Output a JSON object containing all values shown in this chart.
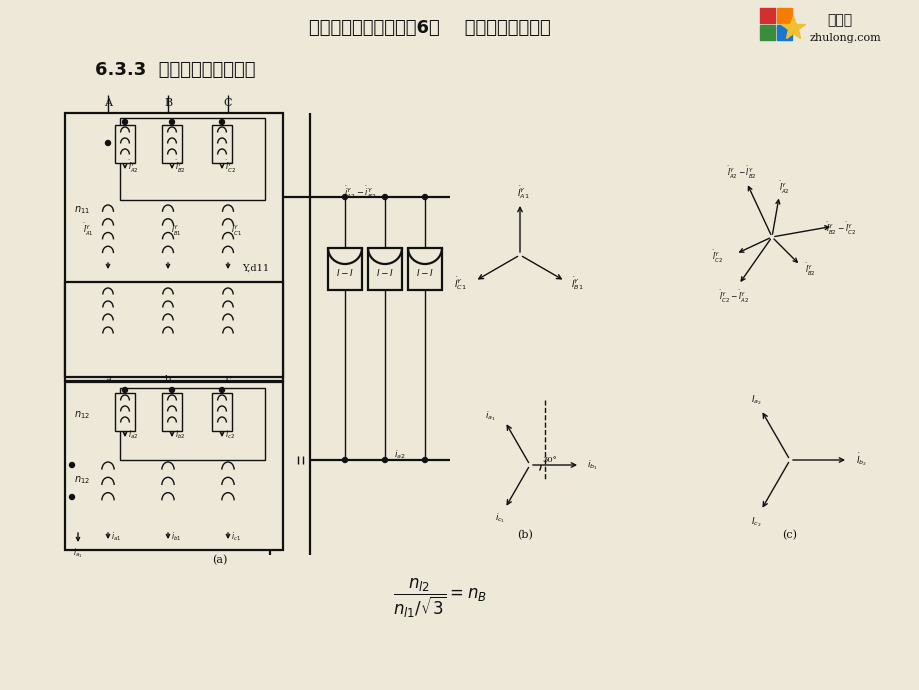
{
  "title_top": "电力系统继电保护（第6章    电力变压器保护）",
  "section_title": "6.3.3  变压器差动保护接线",
  "bg_color": "#ede8d8",
  "label_a": "(a)",
  "label_b": "(b)",
  "label_c": "(c)"
}
